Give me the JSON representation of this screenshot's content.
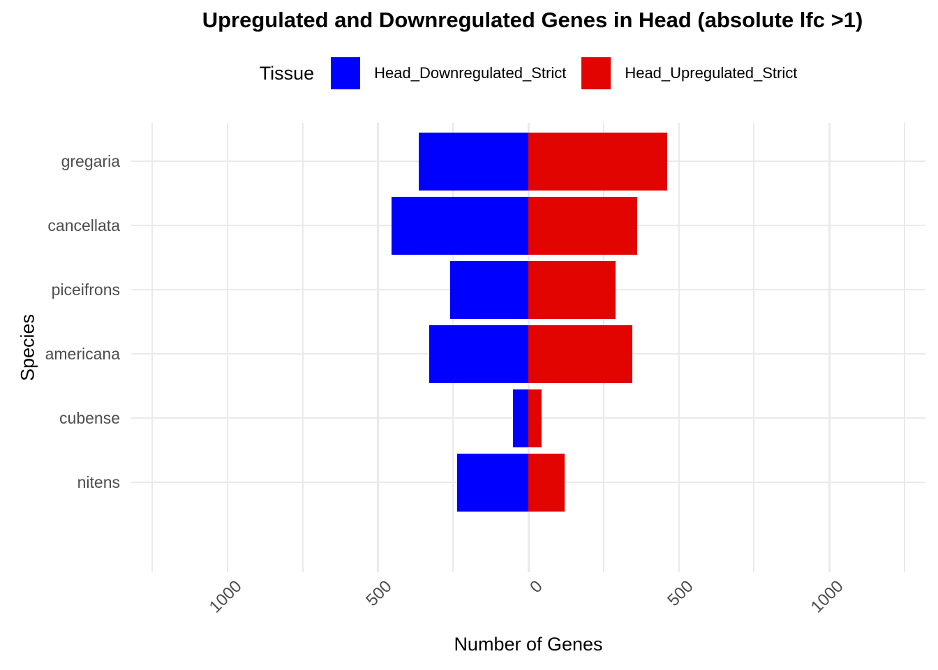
{
  "chart_data": {
    "type": "bar",
    "orientation": "horizontal-diverging",
    "title": "Upregulated and Downregulated Genes in Head (absolute lfc >1)",
    "legend_title": "Tissue",
    "legend_position": "top",
    "xlabel": "Number of Genes",
    "ylabel": "Species",
    "grid": true,
    "categories": [
      "gregaria",
      "cancellata",
      "piceifrons",
      "americana",
      "cubense",
      "nitens"
    ],
    "series": [
      {
        "name": "Head_Downregulated_Strict",
        "direction": "negative",
        "color": "#0000FF",
        "values": [
          365,
          454,
          259,
          330,
          51,
          237
        ]
      },
      {
        "name": "Head_Upregulated_Strict",
        "direction": "positive",
        "color": "#E10400",
        "values": [
          462,
          363,
          291,
          346,
          44,
          121
        ]
      }
    ],
    "x_axis": {
      "xlim": [
        -1320,
        1320
      ],
      "major_ticks": [
        -1000,
        -500,
        0,
        500,
        1000
      ],
      "tick_labels": [
        "1000",
        "500",
        "0",
        "500",
        "1000"
      ],
      "minor_ticks": [
        -1250,
        -750,
        -250,
        250,
        750,
        1250
      ],
      "tick_label_angle_deg": 45
    },
    "colors": {
      "background": "#FFFFFF",
      "gridline": "#EAEAEA",
      "axis_tick_text": "#4D4D4D",
      "title_text": "#000000"
    }
  }
}
